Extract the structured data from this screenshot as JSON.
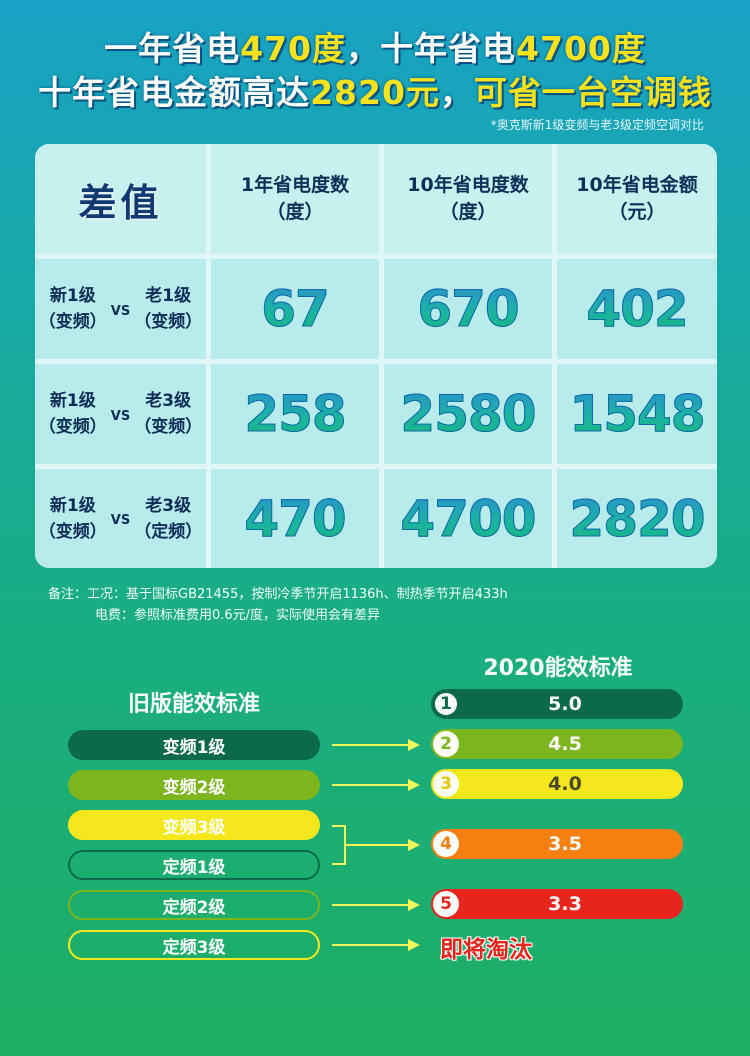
{
  "headline": {
    "line1_a": "一年省电",
    "line1_b": "470度",
    "line1_c": "，十年省电",
    "line1_d": "4700度",
    "line2_a": "十年省电金额高达",
    "line2_b": "2820元",
    "line2_c": "，",
    "line2_d": "可省一台空调钱",
    "footnote": "*奥克斯新1级变频与老3级定频空调对比"
  },
  "table": {
    "corner": "差值",
    "columns": [
      "1年省电度数\n（度）",
      "10年省电度数\n（度）",
      "10年省电金额\n（元）"
    ],
    "rows": [
      {
        "left": "新1级\n（变频）",
        "vs": "VS",
        "right": "老1级\n（变频）",
        "values": [
          "67",
          "670",
          "402"
        ]
      },
      {
        "left": "新1级\n（变频）",
        "vs": "VS",
        "right": "老3级\n（变频）",
        "values": [
          "258",
          "2580",
          "1548"
        ]
      },
      {
        "left": "新1级\n（变频）",
        "vs": "VS",
        "right": "老3级\n（定频）",
        "values": [
          "470",
          "4700",
          "2820"
        ]
      }
    ]
  },
  "remarks": {
    "line1": "备注：工况：基于国标GB21455，按制冷季节开启1136h、制热季节开启433h",
    "line2": "电费：参照标准费用0.6元/度，实际使用会有差异"
  },
  "standards": {
    "old_title": "旧版能效标准",
    "new_title": "2020能效标准",
    "old": [
      {
        "label": "变频1级",
        "color": "#0c6a4a"
      },
      {
        "label": "变频2级",
        "color": "#7cb51d"
      },
      {
        "label": "变频3级",
        "color": "#f4e81d"
      },
      {
        "label": "定频1级",
        "color": "#0c6a4a"
      },
      {
        "label": "定频2级",
        "color": "#7cb51d"
      },
      {
        "label": "定频3级",
        "color": "#f4e81d"
      }
    ],
    "new": [
      {
        "num": "1",
        "value": "5.0",
        "color": "#0c6a4a"
      },
      {
        "num": "2",
        "value": "4.5",
        "color": "#7cb51d"
      },
      {
        "num": "3",
        "value": "4.0",
        "color": "#f4e81d"
      },
      {
        "num": "4",
        "value": "3.5",
        "color": "#f67f12"
      },
      {
        "num": "5",
        "value": "3.3",
        "color": "#e8251c"
      }
    ],
    "eliminate": "即将淘汰"
  }
}
